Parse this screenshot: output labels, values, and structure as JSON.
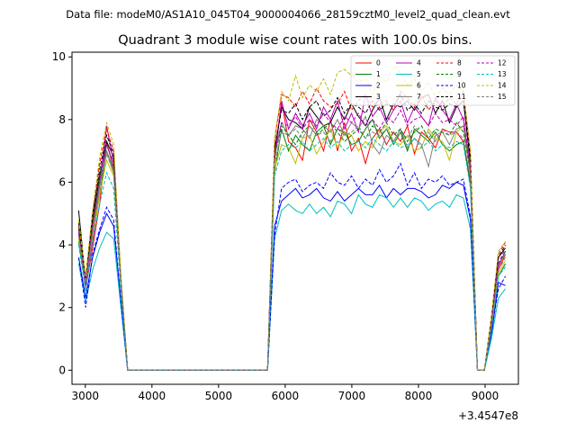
{
  "header": {
    "data_file": "Data file: modeM0/AS1A10_045T04_9000004066_28159cztM0_level2_quad_clean.evt"
  },
  "chart_data": {
    "type": "line",
    "title": "Quadrant 3 module wise count rates with 100.0s bins.",
    "xlabel": "",
    "ylabel": "",
    "x_offset_label": "+3.4547e8",
    "xlim": [
      2800,
      9500
    ],
    "ylim": [
      -0.45,
      10.15
    ],
    "x_ticks": [
      3000,
      4000,
      5000,
      6000,
      7000,
      8000,
      9000
    ],
    "y_ticks": [
      0,
      2,
      4,
      6,
      8,
      10
    ],
    "grid": false,
    "legend_position": "top-right",
    "series": [
      {
        "name": "0",
        "color": "#ff0000",
        "style": "solid",
        "y": [
          4.3,
          2.6,
          3.9,
          5.3,
          7.3,
          6.4,
          2.9,
          0,
          0,
          0,
          0,
          0,
          0,
          0,
          0,
          0,
          0,
          0,
          0,
          0,
          0,
          0,
          0,
          0,
          0,
          0,
          0,
          0,
          6.7,
          8.6,
          7.3,
          7.1,
          6.7,
          8.0,
          7.6,
          7.0,
          8.0,
          7.0,
          7.9,
          7.0,
          7.4,
          6.6,
          7.4,
          7.7,
          7.2,
          7.6,
          7.3,
          7.8,
          6.9,
          7.6,
          7.4,
          7.1,
          7.7,
          7.6,
          7.6,
          7.3,
          6.0,
          0,
          0,
          1.3,
          3.2,
          3.7
        ]
      },
      {
        "name": "1",
        "color": "#008000",
        "style": "solid",
        "y": [
          4.1,
          2.7,
          4.2,
          5.6,
          7.0,
          6.3,
          2.9,
          0,
          0,
          0,
          0,
          0,
          0,
          0,
          0,
          0,
          0,
          0,
          0,
          0,
          0,
          0,
          0,
          0,
          0,
          0,
          0,
          0,
          6.3,
          7.7,
          7.0,
          7.5,
          7.2,
          7.0,
          7.6,
          7.8,
          7.2,
          7.7,
          7.6,
          7.2,
          7.3,
          7.7,
          8.0,
          7.4,
          7.7,
          7.2,
          7.6,
          7.0,
          7.7,
          7.5,
          7.3,
          7.6,
          7.2,
          7.0,
          7.2,
          7.3,
          5.9,
          0,
          0,
          1.4,
          3.0,
          3.4
        ]
      },
      {
        "name": "2",
        "color": "#0000ff",
        "style": "solid",
        "y": [
          3.6,
          2.3,
          3.6,
          4.4,
          5.0,
          4.6,
          2.3,
          0,
          0,
          0,
          0,
          0,
          0,
          0,
          0,
          0,
          0,
          0,
          0,
          0,
          0,
          0,
          0,
          0,
          0,
          0,
          0,
          0,
          4.6,
          5.4,
          5.6,
          5.8,
          5.5,
          5.6,
          5.8,
          5.5,
          5.4,
          5.7,
          5.4,
          5.6,
          5.8,
          5.6,
          5.6,
          5.9,
          5.5,
          5.8,
          5.6,
          5.8,
          5.8,
          5.7,
          5.5,
          5.6,
          5.9,
          5.8,
          6.0,
          5.9,
          4.8,
          0,
          0,
          1.1,
          2.8,
          2.7
        ]
      },
      {
        "name": "3",
        "color": "#000000",
        "style": "solid",
        "y": [
          5.1,
          2.8,
          4.8,
          6.2,
          7.3,
          6.8,
          3.0,
          0,
          0,
          0,
          0,
          0,
          0,
          0,
          0,
          0,
          0,
          0,
          0,
          0,
          0,
          0,
          0,
          0,
          0,
          0,
          0,
          0,
          7.0,
          8.4,
          8.0,
          7.9,
          7.7,
          8.4,
          8.1,
          7.8,
          7.9,
          8.4,
          8.0,
          8.5,
          8.1,
          7.8,
          8.3,
          8.7,
          8.0,
          8.5,
          8.4,
          8.6,
          8.3,
          8.7,
          8.8,
          8.2,
          8.6,
          7.9,
          8.4,
          8.6,
          6.6,
          0,
          0,
          1.6,
          3.6,
          3.9
        ]
      },
      {
        "name": "4",
        "color": "#bf00bf",
        "style": "solid",
        "y": [
          4.5,
          2.7,
          4.1,
          5.9,
          7.8,
          6.6,
          2.9,
          0,
          0,
          0,
          0,
          0,
          0,
          0,
          0,
          0,
          0,
          0,
          0,
          0,
          0,
          0,
          0,
          0,
          0,
          0,
          0,
          0,
          6.7,
          8.6,
          7.7,
          8.2,
          7.8,
          8.2,
          7.7,
          8.4,
          8.0,
          8.6,
          7.7,
          8.2,
          7.6,
          8.8,
          8.1,
          8.4,
          7.9,
          8.3,
          8.6,
          7.9,
          8.4,
          8.1,
          7.8,
          8.7,
          8.3,
          8.0,
          8.5,
          8.0,
          6.4,
          0,
          0,
          1.5,
          3.3,
          3.8
        ]
      },
      {
        "name": "5",
        "color": "#00bfbf",
        "style": "solid",
        "y": [
          3.4,
          2.2,
          3.2,
          3.9,
          4.4,
          4.2,
          2.1,
          0,
          0,
          0,
          0,
          0,
          0,
          0,
          0,
          0,
          0,
          0,
          0,
          0,
          0,
          0,
          0,
          0,
          0,
          0,
          0,
          0,
          4.2,
          5.1,
          5.3,
          5.1,
          5.0,
          5.3,
          5.0,
          5.2,
          4.9,
          5.4,
          5.3,
          5.0,
          5.6,
          5.3,
          5.2,
          5.6,
          5.5,
          5.2,
          5.5,
          5.2,
          5.5,
          5.4,
          5.1,
          5.3,
          5.4,
          5.2,
          5.6,
          5.5,
          4.5,
          0,
          0,
          1.0,
          2.3,
          2.6
        ]
      },
      {
        "name": "6",
        "color": "#bfbf00",
        "style": "solid",
        "y": [
          4.2,
          2.8,
          4.3,
          5.6,
          6.7,
          6.2,
          2.9,
          0,
          0,
          0,
          0,
          0,
          0,
          0,
          0,
          0,
          0,
          0,
          0,
          0,
          0,
          0,
          0,
          0,
          0,
          0,
          0,
          0,
          6.4,
          7.2,
          7.1,
          6.6,
          7.4,
          7.5,
          6.9,
          7.3,
          7.7,
          7.1,
          7.6,
          7.5,
          7.0,
          7.3,
          7.1,
          7.6,
          7.8,
          7.3,
          7.2,
          7.5,
          7.0,
          7.1,
          7.7,
          7.4,
          7.3,
          6.7,
          7.6,
          7.8,
          6.2,
          0,
          0,
          1.4,
          3.1,
          3.5
        ]
      },
      {
        "name": "7",
        "color": "#808080",
        "style": "solid",
        "y": [
          4.4,
          2.6,
          4.5,
          5.9,
          7.0,
          6.4,
          2.9,
          0,
          0,
          0,
          0,
          0,
          0,
          0,
          0,
          0,
          0,
          0,
          0,
          0,
          0,
          0,
          0,
          0,
          0,
          0,
          0,
          0,
          6.9,
          7.9,
          7.5,
          7.8,
          7.7,
          7.4,
          8.0,
          7.8,
          7.6,
          8.0,
          7.5,
          7.9,
          7.7,
          8.1,
          7.2,
          6.9,
          7.5,
          7.3,
          7.7,
          7.1,
          7.4,
          7.2,
          6.5,
          7.5,
          7.6,
          7.2,
          7.7,
          7.8,
          6.2,
          0,
          0,
          1.5,
          3.4,
          3.7
        ]
      },
      {
        "name": "8",
        "color": "#ff0000",
        "style": "dashed",
        "y": [
          4.6,
          2.9,
          4.9,
          6.6,
          7.7,
          7.0,
          3.1,
          0,
          0,
          0,
          0,
          0,
          0,
          0,
          0,
          0,
          0,
          0,
          0,
          0,
          0,
          0,
          0,
          0,
          0,
          0,
          0,
          0,
          7.3,
          8.8,
          8.7,
          8.4,
          8.9,
          8.5,
          9.0,
          8.6,
          8.4,
          8.5,
          8.9,
          8.3,
          8.6,
          8.8,
          8.4,
          8.5,
          8.6,
          8.3,
          8.9,
          8.7,
          8.4,
          8.8,
          8.3,
          8.6,
          8.4,
          8.7,
          8.5,
          8.9,
          6.9,
          0,
          0,
          1.7,
          3.7,
          4.1
        ]
      },
      {
        "name": "9",
        "color": "#008000",
        "style": "dashed",
        "y": [
          4.5,
          2.8,
          4.6,
          6.1,
          7.2,
          6.6,
          3.0,
          0,
          0,
          0,
          0,
          0,
          0,
          0,
          0,
          0,
          0,
          0,
          0,
          0,
          0,
          0,
          0,
          0,
          0,
          0,
          0,
          0,
          6.8,
          7.8,
          7.5,
          7.2,
          7.6,
          7.8,
          7.5,
          7.7,
          7.9,
          7.6,
          7.3,
          7.5,
          7.7,
          7.4,
          7.8,
          7.6,
          7.9,
          7.5,
          7.7,
          7.3,
          7.6,
          7.8,
          7.4,
          7.7,
          7.6,
          7.5,
          7.9,
          7.6,
          6.4,
          0,
          0,
          1.5,
          3.4,
          3.8
        ]
      },
      {
        "name": "10",
        "color": "#0000ff",
        "style": "dashed",
        "y": [
          3.6,
          2.0,
          3.7,
          4.5,
          5.2,
          4.8,
          2.3,
          0,
          0,
          0,
          0,
          0,
          0,
          0,
          0,
          0,
          0,
          0,
          0,
          0,
          0,
          0,
          0,
          0,
          0,
          0,
          0,
          0,
          4.3,
          5.8,
          6.0,
          6.1,
          5.7,
          5.9,
          6.0,
          5.8,
          6.3,
          6.0,
          5.9,
          6.2,
          5.8,
          6.1,
          5.9,
          6.4,
          6.0,
          6.2,
          6.6,
          5.9,
          6.3,
          5.8,
          6.1,
          6.0,
          6.2,
          5.9,
          6.0,
          6.1,
          4.9,
          0,
          0,
          1.2,
          2.6,
          3.0
        ]
      },
      {
        "name": "11",
        "color": "#000000",
        "style": "dashed",
        "y": [
          4.7,
          2.9,
          5.0,
          6.4,
          7.5,
          6.9,
          3.1,
          0,
          0,
          0,
          0,
          0,
          0,
          0,
          0,
          0,
          0,
          0,
          0,
          0,
          0,
          0,
          0,
          0,
          0,
          0,
          0,
          0,
          7.1,
          8.3,
          8.2,
          8.5,
          8.0,
          8.4,
          8.6,
          8.1,
          8.3,
          8.7,
          8.2,
          8.5,
          8.4,
          8.2,
          8.6,
          8.3,
          8.5,
          8.4,
          8.8,
          8.3,
          8.5,
          8.2,
          8.6,
          8.4,
          8.3,
          8.5,
          8.4,
          8.6,
          6.8,
          0,
          0,
          1.6,
          3.6,
          4.0
        ]
      },
      {
        "name": "12",
        "color": "#bf00bf",
        "style": "dashed",
        "y": [
          4.4,
          2.7,
          4.6,
          6.0,
          7.2,
          6.5,
          3.0,
          0,
          0,
          0,
          0,
          0,
          0,
          0,
          0,
          0,
          0,
          0,
          0,
          0,
          0,
          0,
          0,
          0,
          0,
          0,
          0,
          0,
          6.9,
          7.9,
          7.8,
          8.1,
          7.7,
          8.0,
          7.8,
          8.2,
          7.9,
          7.7,
          8.1,
          7.9,
          8.2,
          7.8,
          8.0,
          7.7,
          8.1,
          7.9,
          8.3,
          7.8,
          8.0,
          8.1,
          7.8,
          8.2,
          7.9,
          8.0,
          7.8,
          8.1,
          6.5,
          0,
          0,
          1.5,
          3.4,
          3.9
        ]
      },
      {
        "name": "13",
        "color": "#00bfbf",
        "style": "dashed",
        "y": [
          4.0,
          2.5,
          4.1,
          5.3,
          6.3,
          5.8,
          2.7,
          0,
          0,
          0,
          0,
          0,
          0,
          0,
          0,
          0,
          0,
          0,
          0,
          0,
          0,
          0,
          0,
          0,
          0,
          0,
          0,
          0,
          6.2,
          7.0,
          7.2,
          7.1,
          7.3,
          7.0,
          7.2,
          7.4,
          7.1,
          7.3,
          7.0,
          7.2,
          7.3,
          7.1,
          7.4,
          7.2,
          7.0,
          7.3,
          7.1,
          7.2,
          7.4,
          7.1,
          7.3,
          7.0,
          7.2,
          7.1,
          7.3,
          7.2,
          5.8,
          0,
          0,
          1.3,
          3.0,
          3.3
        ]
      },
      {
        "name": "14",
        "color": "#bfbf00",
        "style": "dashed",
        "y": [
          4.8,
          3.0,
          5.1,
          6.8,
          7.9,
          7.2,
          3.2,
          0,
          0,
          0,
          0,
          0,
          0,
          0,
          0,
          0,
          0,
          0,
          0,
          0,
          0,
          0,
          0,
          0,
          0,
          0,
          0,
          0,
          7.4,
          8.9,
          8.6,
          9.4,
          8.7,
          9.1,
          8.9,
          9.3,
          8.8,
          9.5,
          9.6,
          9.4,
          9.2,
          9.3,
          8.8,
          9.4,
          9.2,
          9.7,
          9.5,
          9.1,
          9.3,
          8.9,
          9.2,
          8.7,
          9.0,
          8.8,
          9.1,
          8.9,
          7.0,
          0,
          0,
          1.7,
          3.8,
          4.1
        ]
      },
      {
        "name": "15",
        "color": "#808080",
        "style": "dashed",
        "y": [
          4.3,
          2.8,
          4.4,
          5.8,
          6.9,
          6.3,
          2.9,
          0,
          0,
          0,
          0,
          0,
          0,
          0,
          0,
          0,
          0,
          0,
          0,
          0,
          0,
          0,
          0,
          0,
          0,
          0,
          0,
          0,
          6.6,
          7.6,
          7.5,
          7.7,
          7.4,
          7.8,
          7.5,
          7.6,
          7.3,
          7.7,
          7.5,
          7.6,
          7.8,
          7.4,
          7.6,
          7.5,
          7.7,
          7.3,
          7.6,
          7.4,
          7.8,
          7.5,
          7.6,
          7.3,
          7.7,
          7.5,
          7.6,
          7.4,
          6.1,
          0,
          0,
          1.4,
          3.2,
          3.6
        ]
      }
    ]
  }
}
